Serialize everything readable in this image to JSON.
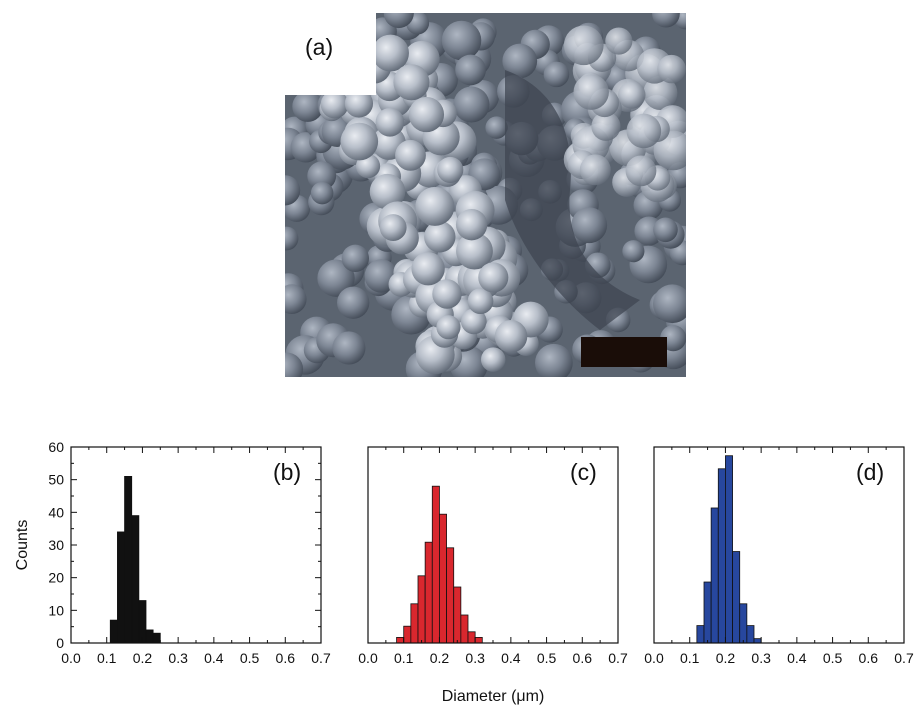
{
  "figure": {
    "panel_a_label": "(a)",
    "shared_xlabel": "Diameter (μm)",
    "ylabel": "Counts"
  },
  "image": {
    "description_kind": "SEM micrograph of aggregated spherical particles",
    "scale_bar_color": "#1a0d08"
  },
  "chart_data": [
    {
      "type": "bar",
      "panel_label": "(b)",
      "bin_width": 0.02,
      "x": [
        0.12,
        0.14,
        0.16,
        0.18,
        0.2,
        0.22,
        0.24
      ],
      "values": [
        7,
        34,
        51,
        39,
        13,
        4,
        3
      ],
      "color": "#111111",
      "xlim": [
        0.0,
        0.7
      ],
      "ylim": [
        0,
        60
      ],
      "xticks": [
        "0.0",
        "0.1",
        "0.2",
        "0.3",
        "0.4",
        "0.5",
        "0.6",
        "0.7"
      ],
      "yticks": [
        "0",
        "10",
        "20",
        "30",
        "40",
        "50",
        "60"
      ],
      "ylabel": "Counts",
      "xlabel": ""
    },
    {
      "type": "bar",
      "panel_label": "(c)",
      "bin_width": 0.02,
      "x": [
        0.09,
        0.11,
        0.13,
        0.15,
        0.17,
        0.19,
        0.21,
        0.23,
        0.25,
        0.27,
        0.29,
        0.31
      ],
      "values": [
        1,
        3,
        7,
        12,
        18,
        28,
        23,
        17,
        10,
        5,
        2,
        1
      ],
      "color": "#d9272e",
      "xlim": [
        0.0,
        0.7
      ],
      "ylim": [
        0,
        35
      ],
      "xticks": [
        "0.0",
        "0.1",
        "0.2",
        "0.3",
        "0.4",
        "0.5",
        "0.6",
        "0.7"
      ],
      "xlabel": "Diameter (μm)"
    },
    {
      "type": "bar",
      "panel_label": "(d)",
      "bin_width": 0.02,
      "x": [
        0.13,
        0.15,
        0.17,
        0.19,
        0.21,
        0.23,
        0.25,
        0.27,
        0.29
      ],
      "values": [
        4,
        14,
        31,
        40,
        43,
        21,
        9,
        4,
        1
      ],
      "color": "#27479e",
      "xlim": [
        0.0,
        0.7
      ],
      "ylim": [
        0,
        45
      ],
      "xticks": [
        "0.0",
        "0.1",
        "0.2",
        "0.3",
        "0.4",
        "0.5",
        "0.6",
        "0.7"
      ],
      "xlabel": ""
    }
  ]
}
